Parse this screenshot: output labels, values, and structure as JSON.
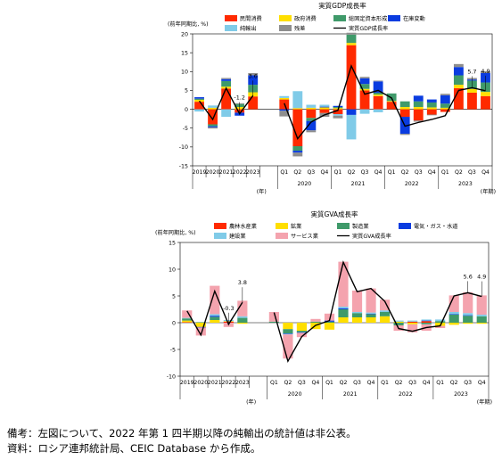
{
  "notes": {
    "note": "備考：左図について、2022 年第 1 四半期以降の純輸出の統計値は非公表。",
    "source": "資料：ロシア連邦統計局、CEIC Database から作成。"
  },
  "chart_data": [
    {
      "type": "bar",
      "title": "実質GDP成長率",
      "ylabel": "(前年同期比, %)",
      "xunit_annual": "(年)",
      "xunit_quarter": "(年期)",
      "ylim": [
        -15,
        20
      ],
      "yticks": [
        -15,
        -10,
        -5,
        0,
        5,
        10,
        15,
        20
      ],
      "categories": [
        "2019",
        "2020",
        "2021",
        "2022",
        "2023",
        "Q1",
        "Q2",
        "Q3",
        "Q4",
        "Q1",
        "Q2",
        "Q3",
        "Q4",
        "Q1",
        "Q2",
        "Q3",
        "Q4",
        "Q1",
        "Q2",
        "Q3",
        "Q4"
      ],
      "group_labels": [
        {
          "label": "2020",
          "from": 5,
          "to": 8
        },
        {
          "label": "2021",
          "from": 9,
          "to": 12
        },
        {
          "label": "2022",
          "from": 13,
          "to": 16
        },
        {
          "label": "2023",
          "from": 17,
          "to": 20
        }
      ],
      "series": [
        {
          "name": "民間消費",
          "color": "#ff2a00",
          "values": [
            2.0,
            -4.0,
            5.5,
            -0.9,
            3.4,
            2.6,
            -9.8,
            -2.3,
            -1.0,
            -1.3,
            17.0,
            5.0,
            3.5,
            2.0,
            -2.0,
            -3.0,
            -1.4,
            -0.7,
            5.6,
            4.4,
            3.5
          ]
        },
        {
          "name": "政府消費",
          "color": "#ffdf00",
          "values": [
            0.5,
            0.4,
            0.5,
            0.6,
            1.1,
            0.4,
            0.3,
            0.4,
            0.5,
            0.3,
            0.6,
            0.4,
            0.4,
            0.2,
            0.6,
            0.6,
            0.5,
            0.4,
            0.9,
            1.0,
            1.1
          ]
        },
        {
          "name": "総固定資本形成",
          "color": "#3f9a6a",
          "values": [
            0.3,
            -0.5,
            1.5,
            0.8,
            2.0,
            0.0,
            -1.2,
            -0.8,
            0.0,
            0.3,
            2.2,
            1.3,
            0.5,
            2.0,
            1.5,
            1.5,
            1.3,
            1.1,
            2.5,
            2.2,
            2.5
          ]
        },
        {
          "name": "在庫変動",
          "color": "#0a3ce0",
          "values": [
            0.4,
            -0.3,
            0.5,
            -0.8,
            2.5,
            -0.4,
            -0.5,
            -2.5,
            0.2,
            0.3,
            -1.5,
            1.5,
            3.0,
            0.0,
            -4.5,
            1.5,
            0.8,
            2.2,
            2.2,
            0.3,
            2.5
          ]
        },
        {
          "name": "純輸出",
          "color": "#80cbe8",
          "values": [
            -0.6,
            0.6,
            -2.0,
            0.0,
            0.0,
            0.5,
            4.5,
            0.8,
            0.5,
            -0.4,
            -6.5,
            -1.2,
            -0.8,
            0.0,
            0.0,
            0.0,
            0.0,
            0.0,
            0.0,
            0.0,
            0.0
          ]
        },
        {
          "name": "残差",
          "color": "#8e8e8e",
          "values": [
            0.0,
            -0.3,
            0.3,
            0.2,
            0.6,
            -1.5,
            -1.0,
            -0.5,
            -1.0,
            -0.7,
            0.5,
            0.4,
            0.2,
            0.0,
            -0.3,
            -0.3,
            -0.2,
            0.4,
            0.8,
            0.4,
            0.5
          ]
        }
      ],
      "line": {
        "name": "実質GDP成長率",
        "color": "#000000",
        "values": [
          2.2,
          -2.7,
          5.6,
          -1.2,
          3.6,
          1.6,
          -7.8,
          -3.4,
          -1.5,
          -0.3,
          11.5,
          4.0,
          5.0,
          3.0,
          -4.5,
          -3.5,
          -2.7,
          -1.7,
          5.0,
          5.7,
          4.9
        ]
      },
      "annotations": [
        {
          "text": "-1.2",
          "index": 3
        },
        {
          "text": "3.6",
          "index": 4
        },
        {
          "text": "5.7",
          "index": 19
        },
        {
          "text": "4.9",
          "index": 20
        }
      ]
    },
    {
      "type": "bar",
      "title": "実質GVA成長率",
      "ylabel": "(前年同期比, %)",
      "xunit_annual": "(年)",
      "xunit_quarter": "(年期)",
      "ylim": [
        -10,
        15
      ],
      "yticks": [
        -10,
        -5,
        0,
        5,
        10,
        15
      ],
      "categories": [
        "2019",
        "2020",
        "2021",
        "2022",
        "2023",
        "Q1",
        "Q2",
        "Q3",
        "Q4",
        "Q1",
        "Q2",
        "Q3",
        "Q4",
        "Q1",
        "Q2",
        "Q3",
        "Q4",
        "Q1",
        "Q2",
        "Q3",
        "Q4"
      ],
      "group_labels": [
        {
          "label": "2020",
          "from": 5,
          "to": 8
        },
        {
          "label": "2021",
          "from": 9,
          "to": 12
        },
        {
          "label": "2022",
          "from": 13,
          "to": 16
        },
        {
          "label": "2023",
          "from": 17,
          "to": 20
        }
      ],
      "series": [
        {
          "name": "農林水産業",
          "color": "#ff2a00",
          "values": [
            0.1,
            0.0,
            0.0,
            0.2,
            0.0,
            0.0,
            0.0,
            0.0,
            0.0,
            0.0,
            0.0,
            0.0,
            0.0,
            0.0,
            0.0,
            0.2,
            0.3,
            0.0,
            0.0,
            0.0,
            0.0
          ]
        },
        {
          "name": "鉱業",
          "color": "#ffdf00",
          "values": [
            0.3,
            -0.8,
            0.5,
            0.1,
            -0.2,
            0.0,
            -1.2,
            -1.5,
            -1.2,
            -1.3,
            1.0,
            1.0,
            1.0,
            1.2,
            0.2,
            -0.3,
            0.0,
            -0.6,
            -0.4,
            -0.2,
            -0.2
          ]
        },
        {
          "name": "製造業",
          "color": "#3f9a6a",
          "values": [
            0.4,
            0.1,
            0.6,
            0.0,
            0.9,
            0.2,
            -0.8,
            -0.3,
            0.2,
            0.2,
            1.5,
            0.8,
            0.6,
            0.8,
            -0.5,
            0.0,
            -0.3,
            0.3,
            1.5,
            1.3,
            1.2
          ]
        },
        {
          "name": "電気・ガス・水道",
          "color": "#0a3ce0",
          "values": [
            0.0,
            -0.1,
            0.2,
            0.0,
            0.0,
            0.0,
            -0.1,
            -0.1,
            0.0,
            0.2,
            0.2,
            0.0,
            0.1,
            0.0,
            0.0,
            0.0,
            0.1,
            0.0,
            0.1,
            0.1,
            0.0
          ]
        },
        {
          "name": "建設業",
          "color": "#80cbe8",
          "values": [
            0.1,
            0.0,
            0.3,
            0.2,
            0.3,
            0.0,
            -0.1,
            0.0,
            0.0,
            0.0,
            0.3,
            0.2,
            0.2,
            0.3,
            0.2,
            0.2,
            0.2,
            0.3,
            0.4,
            0.4,
            0.3
          ]
        },
        {
          "name": "サービス業",
          "color": "#f4a3ae",
          "values": [
            1.4,
            -1.5,
            5.3,
            -0.8,
            2.9,
            1.8,
            -4.5,
            -0.8,
            0.5,
            1.3,
            8.4,
            4.0,
            4.5,
            2.0,
            -1.0,
            -1.5,
            -1.2,
            -0.4,
            3.1,
            3.9,
            3.6
          ]
        }
      ],
      "line": {
        "name": "実質GVA成長率",
        "color": "#000000",
        "values": [
          2.2,
          -2.3,
          5.9,
          -0.3,
          3.8,
          1.9,
          -7.2,
          -2.6,
          -0.5,
          0.4,
          11.3,
          5.8,
          6.4,
          4.0,
          -1.1,
          -1.6,
          -0.9,
          -0.6,
          5.0,
          5.6,
          4.9
        ]
      },
      "annotations": [
        {
          "text": "-0.3",
          "index": 3
        },
        {
          "text": "3.8",
          "index": 4
        },
        {
          "text": "5.6",
          "index": 19
        },
        {
          "text": "4.9",
          "index": 20
        }
      ]
    }
  ]
}
